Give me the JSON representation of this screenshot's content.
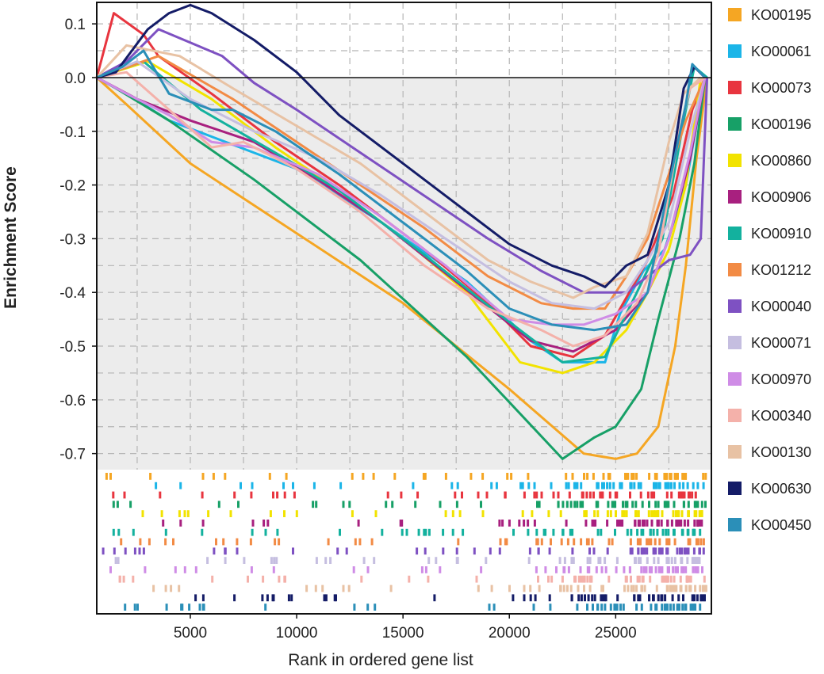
{
  "chart_data": {
    "type": "line",
    "xlabel": "Rank in ordered gene list",
    "ylabel": "Enrichment Score",
    "xlim": [
      600,
      29500
    ],
    "ylim": [
      -0.73,
      0.14
    ],
    "x_ticks": [
      {
        "value": 5000,
        "label": "5000"
      },
      {
        "value": 10000,
        "label": "10000"
      },
      {
        "value": 15000,
        "label": "15000"
      },
      {
        "value": 20000,
        "label": "20000"
      },
      {
        "value": 25000,
        "label": "25000"
      }
    ],
    "y_ticks": [
      {
        "value": 0.1,
        "label": "0.1"
      },
      {
        "value": 0.0,
        "label": "0.0"
      },
      {
        "value": -0.1,
        "label": "-0.1"
      },
      {
        "value": -0.2,
        "label": "-0.2"
      },
      {
        "value": -0.3,
        "label": "-0.3"
      },
      {
        "value": -0.4,
        "label": "-0.4"
      },
      {
        "value": -0.5,
        "label": "-0.5"
      },
      {
        "value": -0.6,
        "label": "-0.6"
      },
      {
        "value": -0.7,
        "label": "-0.7"
      }
    ],
    "grid": true,
    "grid_style": "dashed",
    "negative_region_shaded": true,
    "legend_placement": "right",
    "series": [
      {
        "name": "KO00195",
        "color": "#F5A623",
        "values": [
          [
            600,
            0
          ],
          [
            2000,
            -0.05
          ],
          [
            5000,
            -0.16
          ],
          [
            10000,
            -0.29
          ],
          [
            15000,
            -0.42
          ],
          [
            20000,
            -0.58
          ],
          [
            23500,
            -0.7
          ],
          [
            25000,
            -0.71
          ],
          [
            26000,
            -0.7
          ],
          [
            27000,
            -0.65
          ],
          [
            27800,
            -0.5
          ],
          [
            28300,
            -0.35
          ],
          [
            28800,
            -0.15
          ],
          [
            29300,
            0
          ]
        ]
      },
      {
        "name": "KO00061",
        "color": "#1BB5E8",
        "values": [
          [
            600,
            0
          ],
          [
            2000,
            -0.03
          ],
          [
            4000,
            -0.08
          ],
          [
            6000,
            -0.11
          ],
          [
            8000,
            -0.14
          ],
          [
            10000,
            -0.17
          ],
          [
            14000,
            -0.27
          ],
          [
            18000,
            -0.38
          ],
          [
            21000,
            -0.49
          ],
          [
            22500,
            -0.53
          ],
          [
            24500,
            -0.53
          ],
          [
            25200,
            -0.44
          ],
          [
            26300,
            -0.36
          ],
          [
            27300,
            -0.32
          ],
          [
            28300,
            -0.2
          ],
          [
            29200,
            0
          ]
        ]
      },
      {
        "name": "KO00073",
        "color": "#E8353F",
        "values": [
          [
            600,
            0
          ],
          [
            1400,
            0.12
          ],
          [
            2800,
            0.08
          ],
          [
            3500,
            0.04
          ],
          [
            6000,
            -0.03
          ],
          [
            9000,
            -0.12
          ],
          [
            12000,
            -0.2
          ],
          [
            16000,
            -0.32
          ],
          [
            19000,
            -0.42
          ],
          [
            21000,
            -0.5
          ],
          [
            23000,
            -0.52
          ],
          [
            24500,
            -0.48
          ],
          [
            25500,
            -0.41
          ],
          [
            26500,
            -0.34
          ],
          [
            27700,
            -0.22
          ],
          [
            28600,
            -0.06
          ],
          [
            29200,
            0
          ]
        ]
      },
      {
        "name": "KO00196",
        "color": "#17A067",
        "values": [
          [
            600,
            0
          ],
          [
            1500,
            -0.02
          ],
          [
            4000,
            -0.08
          ],
          [
            8000,
            -0.19
          ],
          [
            13000,
            -0.34
          ],
          [
            18000,
            -0.52
          ],
          [
            22500,
            -0.71
          ],
          [
            24000,
            -0.67
          ],
          [
            25000,
            -0.65
          ],
          [
            26200,
            -0.58
          ],
          [
            27000,
            -0.45
          ],
          [
            28000,
            -0.3
          ],
          [
            28700,
            -0.16
          ],
          [
            29200,
            0
          ]
        ]
      },
      {
        "name": "KO00860",
        "color": "#F2E300",
        "values": [
          [
            600,
            0
          ],
          [
            3000,
            0.03
          ],
          [
            6000,
            -0.04
          ],
          [
            9000,
            -0.13
          ],
          [
            12000,
            -0.21
          ],
          [
            15000,
            -0.3
          ],
          [
            18000,
            -0.4
          ],
          [
            20500,
            -0.53
          ],
          [
            22500,
            -0.55
          ],
          [
            24000,
            -0.53
          ],
          [
            25500,
            -0.47
          ],
          [
            26500,
            -0.4
          ],
          [
            27500,
            -0.32
          ],
          [
            28300,
            -0.2
          ],
          [
            29000,
            0
          ]
        ]
      },
      {
        "name": "KO00906",
        "color": "#A8207F",
        "values": [
          [
            600,
            0
          ],
          [
            2500,
            -0.04
          ],
          [
            5000,
            -0.08
          ],
          [
            8000,
            -0.12
          ],
          [
            11000,
            -0.19
          ],
          [
            14000,
            -0.27
          ],
          [
            17500,
            -0.38
          ],
          [
            21000,
            -0.49
          ],
          [
            23000,
            -0.51
          ],
          [
            25000,
            -0.47
          ],
          [
            26500,
            -0.4
          ],
          [
            27500,
            -0.3
          ],
          [
            28500,
            -0.15
          ],
          [
            29200,
            0
          ]
        ]
      },
      {
        "name": "KO00910",
        "color": "#13B19E",
        "values": [
          [
            600,
            0
          ],
          [
            2800,
            0.03
          ],
          [
            5500,
            -0.06
          ],
          [
            9000,
            -0.14
          ],
          [
            12000,
            -0.21
          ],
          [
            16000,
            -0.33
          ],
          [
            19500,
            -0.44
          ],
          [
            22500,
            -0.53
          ],
          [
            24500,
            -0.52
          ],
          [
            26000,
            -0.4
          ],
          [
            27200,
            -0.3
          ],
          [
            28200,
            -0.08
          ],
          [
            28700,
            0.02
          ],
          [
            29300,
            0
          ]
        ]
      },
      {
        "name": "KO01212",
        "color": "#F28B45",
        "values": [
          [
            600,
            0
          ],
          [
            3500,
            0.04
          ],
          [
            7000,
            -0.04
          ],
          [
            10000,
            -0.12
          ],
          [
            13000,
            -0.2
          ],
          [
            16000,
            -0.28
          ],
          [
            19000,
            -0.37
          ],
          [
            21500,
            -0.42
          ],
          [
            23000,
            -0.43
          ],
          [
            24500,
            -0.43
          ],
          [
            25500,
            -0.37
          ],
          [
            26500,
            -0.3
          ],
          [
            27500,
            -0.18
          ],
          [
            28300,
            -0.08
          ],
          [
            29200,
            0
          ]
        ]
      },
      {
        "name": "KO00040",
        "color": "#7E51C2",
        "values": [
          [
            600,
            0
          ],
          [
            2000,
            0.03
          ],
          [
            3500,
            0.09
          ],
          [
            6500,
            0.04
          ],
          [
            8000,
            -0.01
          ],
          [
            10000,
            -0.06
          ],
          [
            13000,
            -0.14
          ],
          [
            16000,
            -0.22
          ],
          [
            19000,
            -0.3
          ],
          [
            21500,
            -0.36
          ],
          [
            23500,
            -0.4
          ],
          [
            25500,
            -0.4
          ],
          [
            26500,
            -0.37
          ],
          [
            27500,
            -0.34
          ],
          [
            28500,
            -0.33
          ],
          [
            29000,
            -0.3
          ],
          [
            29300,
            0
          ]
        ]
      },
      {
        "name": "KO00071",
        "color": "#C5BEE0",
        "values": [
          [
            600,
            0
          ],
          [
            2500,
            0.03
          ],
          [
            5000,
            -0.04
          ],
          [
            8000,
            -0.1
          ],
          [
            11000,
            -0.15
          ],
          [
            14000,
            -0.22
          ],
          [
            17000,
            -0.3
          ],
          [
            20000,
            -0.38
          ],
          [
            22000,
            -0.42
          ],
          [
            24000,
            -0.43
          ],
          [
            25500,
            -0.4
          ],
          [
            26500,
            -0.34
          ],
          [
            27500,
            -0.27
          ],
          [
            28500,
            -0.1
          ],
          [
            29200,
            0
          ]
        ]
      },
      {
        "name": "KO00970",
        "color": "#CF8CE6",
        "values": [
          [
            600,
            0
          ],
          [
            2000,
            -0.03
          ],
          [
            4000,
            -0.07
          ],
          [
            6000,
            -0.12
          ],
          [
            8000,
            -0.13
          ],
          [
            11000,
            -0.18
          ],
          [
            14000,
            -0.26
          ],
          [
            17000,
            -0.35
          ],
          [
            20000,
            -0.45
          ],
          [
            22000,
            -0.46
          ],
          [
            23500,
            -0.46
          ],
          [
            25000,
            -0.44
          ],
          [
            26500,
            -0.4
          ],
          [
            27500,
            -0.3
          ],
          [
            28500,
            -0.14
          ],
          [
            29200,
            0
          ]
        ]
      },
      {
        "name": "KO00340",
        "color": "#F4B1AA",
        "values": [
          [
            600,
            0
          ],
          [
            2000,
            0.01
          ],
          [
            4000,
            -0.06
          ],
          [
            6000,
            -0.13
          ],
          [
            7500,
            -0.12
          ],
          [
            10000,
            -0.17
          ],
          [
            13000,
            -0.25
          ],
          [
            16000,
            -0.35
          ],
          [
            19000,
            -0.43
          ],
          [
            21500,
            -0.47
          ],
          [
            23000,
            -0.5
          ],
          [
            24500,
            -0.48
          ],
          [
            26000,
            -0.42
          ],
          [
            27000,
            -0.33
          ],
          [
            28000,
            -0.1
          ],
          [
            28500,
            -0.02
          ],
          [
            29200,
            0
          ]
        ]
      },
      {
        "name": "KO00130",
        "color": "#E8C2A4",
        "values": [
          [
            600,
            0
          ],
          [
            2000,
            0.06
          ],
          [
            4500,
            0.04
          ],
          [
            7000,
            -0.02
          ],
          [
            10000,
            -0.09
          ],
          [
            13000,
            -0.16
          ],
          [
            16000,
            -0.25
          ],
          [
            19000,
            -0.34
          ],
          [
            21000,
            -0.38
          ],
          [
            23000,
            -0.41
          ],
          [
            24000,
            -0.39
          ],
          [
            25500,
            -0.37
          ],
          [
            26500,
            -0.29
          ],
          [
            27500,
            -0.12
          ],
          [
            28200,
            -0.03
          ],
          [
            29000,
            0
          ]
        ]
      },
      {
        "name": "KO00630",
        "color": "#141C67",
        "values": [
          [
            600,
            0
          ],
          [
            1500,
            0.01
          ],
          [
            3000,
            0.09
          ],
          [
            4000,
            0.12
          ],
          [
            5000,
            0.135
          ],
          [
            6000,
            0.12
          ],
          [
            8000,
            0.07
          ],
          [
            10000,
            0.01
          ],
          [
            12000,
            -0.07
          ],
          [
            15000,
            -0.16
          ],
          [
            18000,
            -0.25
          ],
          [
            20000,
            -0.31
          ],
          [
            22000,
            -0.35
          ],
          [
            23500,
            -0.37
          ],
          [
            24500,
            -0.39
          ],
          [
            25500,
            -0.35
          ],
          [
            26500,
            -0.33
          ],
          [
            27500,
            -0.2
          ],
          [
            28200,
            -0.02
          ],
          [
            28700,
            0.02
          ],
          [
            29200,
            0
          ]
        ]
      },
      {
        "name": "KO00450",
        "color": "#2B8FB8",
        "values": [
          [
            600,
            0
          ],
          [
            1800,
            0.02
          ],
          [
            2800,
            0.05
          ],
          [
            4000,
            -0.03
          ],
          [
            6000,
            -0.06
          ],
          [
            7000,
            -0.06
          ],
          [
            9000,
            -0.1
          ],
          [
            12000,
            -0.18
          ],
          [
            15000,
            -0.27
          ],
          [
            18000,
            -0.36
          ],
          [
            20000,
            -0.43
          ],
          [
            22000,
            -0.46
          ],
          [
            24000,
            -0.47
          ],
          [
            25500,
            -0.46
          ],
          [
            26500,
            -0.4
          ],
          [
            27500,
            -0.2
          ],
          [
            28300,
            -0.05
          ],
          [
            28600,
            0.025
          ],
          [
            29200,
            0
          ]
        ]
      }
    ]
  }
}
